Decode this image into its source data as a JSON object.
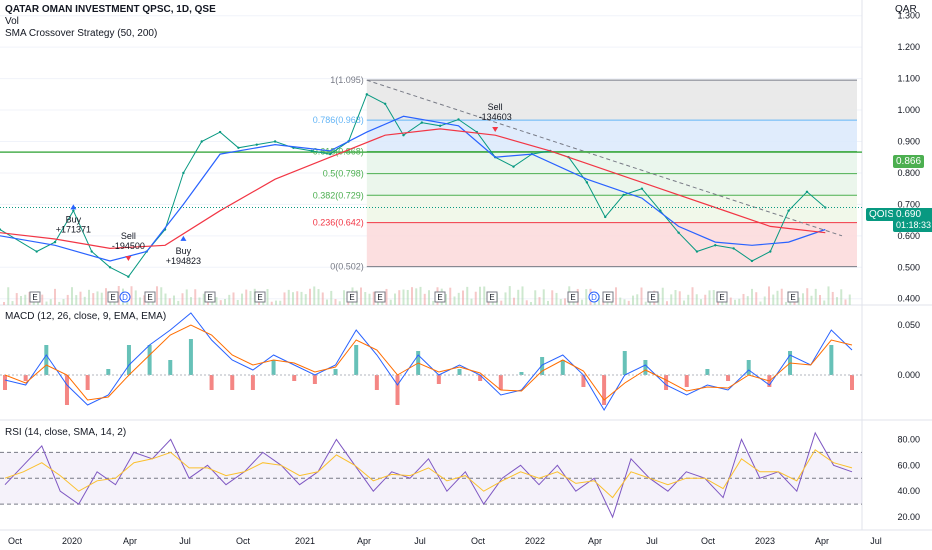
{
  "header": {
    "symbol_title": "QATAR OMAN INVESTMENT QPSC, 1D, QSE",
    "vol_label": "Vol",
    "strategy_label": "SMA Crossover Strategy (50, 200)",
    "currency": "QAR"
  },
  "panes": {
    "macd_label": "MACD (12, 26, close, 9, EMA, EMA)",
    "rsi_label": "RSI (14, close, SMA, 14, 2)"
  },
  "colors": {
    "price": "#089981",
    "sma_fast": "#2962ff",
    "sma_slow": "#f23645",
    "macd": "#2962ff",
    "signal": "#ff6d00",
    "rsi": "#7e57c2",
    "rsi_ma": "#fbc02d",
    "hline": "#4caf50"
  },
  "price_axis": {
    "ticks": [
      "1.300",
      "1.200",
      "1.100",
      "1.000",
      "0.900",
      "0.800",
      "0.700",
      "0.600",
      "0.500",
      "0.400"
    ]
  },
  "macd_axis": {
    "ticks": [
      "0.050",
      "0.000"
    ]
  },
  "rsi_axis": {
    "ticks": [
      "80.00",
      "60.00",
      "40.00",
      "20.00"
    ]
  },
  "time_axis": {
    "labels": [
      "Oct",
      "2020",
      "Apr",
      "Jul",
      "Oct",
      "2021",
      "Apr",
      "Jul",
      "Oct",
      "2022",
      "Apr",
      "Jul",
      "Oct",
      "2023",
      "Apr",
      "Jul"
    ]
  },
  "badges": {
    "hline_value": "0.866",
    "symbol": "QOIS",
    "last_price": "0.690",
    "countdown": "01:18:33"
  },
  "fibonacci": {
    "levels": [
      {
        "label": "1(1.095)",
        "value": 1.095
      },
      {
        "label": "0.786(0.968)",
        "value": 0.968
      },
      {
        "label": "0.618(0.868)",
        "value": 0.868
      },
      {
        "label": "0.5(0.798)",
        "value": 0.798
      },
      {
        "label": "0.382(0.729)",
        "value": 0.729
      },
      {
        "label": "0.236(0.642)",
        "value": 0.642
      },
      {
        "label": "0(0.502)",
        "value": 0.502
      }
    ]
  },
  "trades": [
    {
      "type": "buy",
      "label": "Buy",
      "qty": "+171371"
    },
    {
      "type": "sell",
      "label": "Sell",
      "qty": "-194500"
    },
    {
      "type": "buy",
      "label": "Buy",
      "qty": "+194823"
    },
    {
      "type": "sell",
      "label": "Sell",
      "qty": "-134603"
    }
  ],
  "events": [
    "E",
    "E",
    "D",
    "E",
    "E",
    "E",
    "E",
    "E",
    "E",
    "E",
    "E",
    "D",
    "E",
    "E",
    "E",
    "E"
  ],
  "chart_data": [
    {
      "type": "line",
      "title": "QATAR OMAN INVESTMENT QPSC, 1D, QSE",
      "ylim": [
        0.38,
        1.35
      ],
      "series": [
        {
          "name": "QOIS",
          "x": [
            "2019-09",
            "2019-11",
            "2019-12",
            "2020-01",
            "2020-02",
            "2020-03",
            "2020-04",
            "2020-05",
            "2020-06",
            "2020-07",
            "2020-08",
            "2020-09",
            "2020-10",
            "2020-11",
            "2020-12",
            "2021-01",
            "2021-02",
            "2021-03",
            "2021-04",
            "2021-05",
            "2021-06",
            "2021-07",
            "2021-08",
            "2021-09",
            "2021-10",
            "2021-11",
            "2021-12",
            "2022-01",
            "2022-02",
            "2022-03",
            "2022-04",
            "2022-05",
            "2022-06",
            "2022-07",
            "2022-08",
            "2022-09",
            "2022-10",
            "2022-11",
            "2022-12",
            "2023-01",
            "2023-02",
            "2023-03",
            "2023-04",
            "2023-05",
            "2023-06"
          ],
          "values": [
            0.62,
            0.55,
            0.58,
            0.68,
            0.55,
            0.5,
            0.47,
            0.55,
            0.62,
            0.8,
            0.9,
            0.93,
            0.88,
            0.89,
            0.9,
            0.88,
            0.87,
            0.86,
            0.9,
            1.05,
            1.02,
            0.92,
            0.96,
            0.95,
            0.97,
            0.93,
            0.85,
            0.82,
            0.86,
            0.87,
            0.85,
            0.77,
            0.66,
            0.73,
            0.75,
            0.68,
            0.61,
            0.55,
            0.57,
            0.56,
            0.52,
            0.55,
            0.68,
            0.74,
            0.69
          ]
        },
        {
          "name": "SMA 50",
          "x": [
            "2019-09",
            "2019-12",
            "2020-03",
            "2020-05",
            "2020-07",
            "2020-09",
            "2020-12",
            "2021-03",
            "2021-05",
            "2021-07",
            "2021-10",
            "2021-12",
            "2022-02",
            "2022-05",
            "2022-08",
            "2022-10",
            "2022-12",
            "2023-02",
            "2023-04",
            "2023-06"
          ],
          "values": [
            0.6,
            0.57,
            0.52,
            0.55,
            0.7,
            0.86,
            0.89,
            0.87,
            0.93,
            0.98,
            0.95,
            0.85,
            0.86,
            0.78,
            0.72,
            0.63,
            0.58,
            0.57,
            0.58,
            0.62
          ]
        },
        {
          "name": "SMA 200",
          "x": [
            "2019-09",
            "2019-12",
            "2020-03",
            "2020-06",
            "2020-09",
            "2020-12",
            "2021-03",
            "2021-06",
            "2021-09",
            "2021-12",
            "2022-03",
            "2022-06",
            "2022-09",
            "2022-12",
            "2023-03",
            "2023-06"
          ],
          "values": [
            0.61,
            0.59,
            0.56,
            0.57,
            0.68,
            0.78,
            0.85,
            0.92,
            0.94,
            0.92,
            0.87,
            0.81,
            0.75,
            0.69,
            0.63,
            0.61
          ]
        }
      ]
    },
    {
      "type": "line",
      "title": "MACD (12, 26, close, 9, EMA, EMA)",
      "ylim": [
        -0.045,
        0.07
      ],
      "series": [
        {
          "name": "MACD",
          "values": [
            -0.005,
            -0.01,
            0.02,
            -0.01,
            -0.03,
            -0.02,
            0.01,
            0.03,
            0.045,
            0.062,
            0.035,
            0.015,
            0.005,
            0.02,
            0.01,
            0.0,
            0.01,
            0.045,
            0.02,
            -0.01,
            0.02,
            0.0,
            0.01,
            0.0,
            -0.02,
            -0.015,
            0.01,
            0.02,
            0.0,
            -0.035,
            0.0,
            0.01,
            -0.01,
            -0.02,
            -0.01,
            -0.015,
            0.005,
            -0.01,
            0.02,
            0.01,
            0.045,
            0.025
          ]
        },
        {
          "name": "Signal",
          "values": [
            0.0,
            -0.008,
            0.01,
            0.0,
            -0.025,
            -0.022,
            0.0,
            0.02,
            0.04,
            0.05,
            0.04,
            0.02,
            0.01,
            0.015,
            0.012,
            0.003,
            0.008,
            0.035,
            0.025,
            0.0,
            0.012,
            0.003,
            0.008,
            0.002,
            -0.015,
            -0.016,
            0.004,
            0.015,
            0.004,
            -0.025,
            -0.008,
            0.005,
            -0.005,
            -0.016,
            -0.012,
            -0.013,
            0.0,
            -0.006,
            0.012,
            0.01,
            0.035,
            0.03
          ]
        }
      ]
    },
    {
      "type": "line",
      "title": "RSI (14, close, SMA, 14, 2)",
      "ylim": [
        10,
        95
      ],
      "series": [
        {
          "name": "RSI",
          "values": [
            45,
            60,
            75,
            40,
            30,
            55,
            45,
            70,
            65,
            80,
            50,
            60,
            45,
            55,
            70,
            60,
            45,
            55,
            80,
            60,
            40,
            55,
            50,
            65,
            40,
            55,
            30,
            50,
            60,
            45,
            60,
            40,
            50,
            20,
            65,
            50,
            40,
            55,
            50,
            35,
            80,
            50,
            55,
            40,
            85,
            60,
            55
          ]
        },
        {
          "name": "RSI MA",
          "values": [
            50,
            55,
            62,
            52,
            40,
            48,
            50,
            62,
            65,
            70,
            58,
            58,
            52,
            55,
            62,
            60,
            52,
            55,
            68,
            60,
            48,
            53,
            52,
            58,
            48,
            52,
            40,
            48,
            55,
            50,
            55,
            46,
            48,
            35,
            55,
            50,
            45,
            50,
            50,
            42,
            65,
            55,
            55,
            48,
            72,
            62,
            58
          ]
        }
      ]
    }
  ]
}
